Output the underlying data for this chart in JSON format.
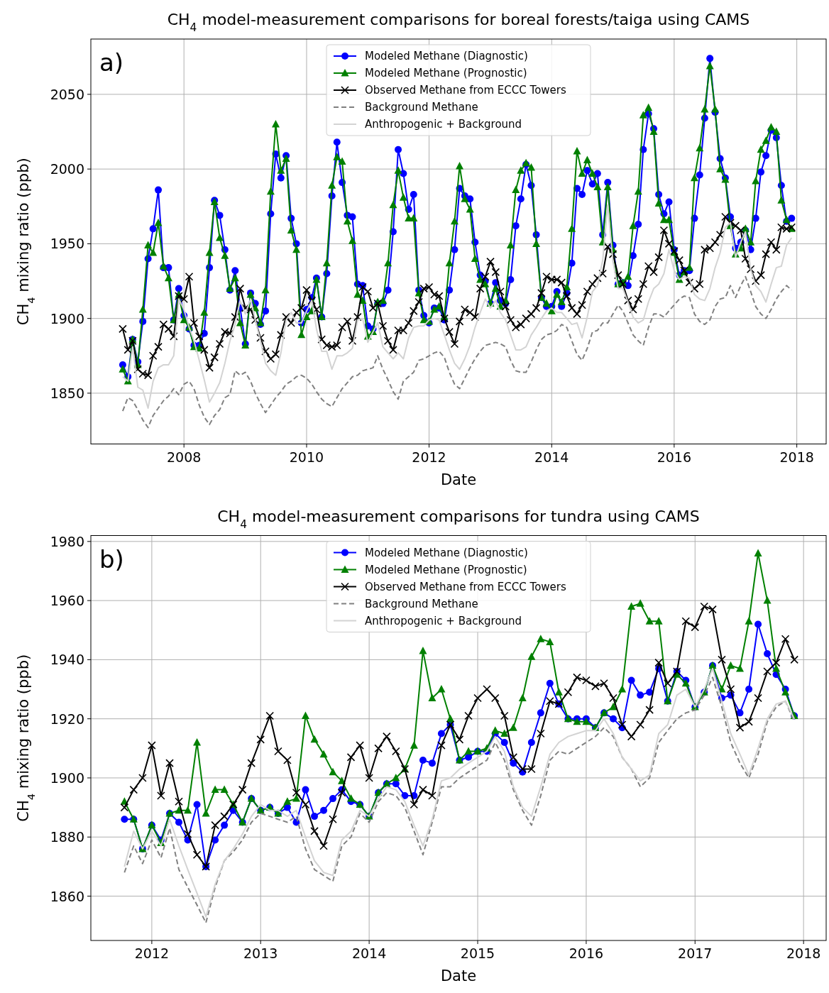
{
  "chart_data": [
    {
      "type": "line",
      "title": "CH$_{4}$ model-measurement comparisons for boreal forests/taiga using CAMS",
      "xlabel": "Date",
      "ylabel": "CH$_{4}$ mixing ratio (ppb)",
      "annotations": [
        "a)"
      ],
      "x": [
        "2007-01",
        "2007-02",
        "2007-03",
        "2007-04",
        "2007-05",
        "2007-06",
        "2007-07",
        "2007-08",
        "2007-09",
        "2007-10",
        "2007-11",
        "2007-12",
        "2008-01",
        "2008-02",
        "2008-03",
        "2008-04",
        "2008-05",
        "2008-06",
        "2008-07",
        "2008-08",
        "2008-09",
        "2008-10",
        "2008-11",
        "2008-12",
        "2009-01",
        "2009-02",
        "2009-03",
        "2009-04",
        "2009-05",
        "2009-06",
        "2009-07",
        "2009-08",
        "2009-09",
        "2009-10",
        "2009-11",
        "2009-12",
        "2010-01",
        "2010-02",
        "2010-03",
        "2010-04",
        "2010-05",
        "2010-06",
        "2010-07",
        "2010-08",
        "2010-09",
        "2010-10",
        "2010-11",
        "2010-12",
        "2011-01",
        "2011-02",
        "2011-03",
        "2011-04",
        "2011-05",
        "2011-06",
        "2011-07",
        "2011-08",
        "2011-09",
        "2011-10",
        "2011-11",
        "2011-12",
        "2012-01",
        "2012-02",
        "2012-03",
        "2012-04",
        "2012-05",
        "2012-06",
        "2012-07",
        "2012-08",
        "2012-09",
        "2012-10",
        "2012-11",
        "2012-12",
        "2013-01",
        "2013-02",
        "2013-03",
        "2013-04",
        "2013-05",
        "2013-06",
        "2013-07",
        "2013-08",
        "2013-09",
        "2013-10",
        "2013-11",
        "2013-12",
        "2014-01",
        "2014-02",
        "2014-03",
        "2014-04",
        "2014-05",
        "2014-06",
        "2014-07",
        "2014-08",
        "2014-09",
        "2014-10",
        "2014-11",
        "2014-12",
        "2015-01",
        "2015-02",
        "2015-03",
        "2015-04",
        "2015-05",
        "2015-06",
        "2015-07",
        "2015-08",
        "2015-09",
        "2015-10",
        "2015-11",
        "2015-12",
        "2016-01",
        "2016-02",
        "2016-03",
        "2016-04",
        "2016-05",
        "2016-06",
        "2016-07",
        "2016-08",
        "2016-09",
        "2016-10",
        "2016-11",
        "2016-12",
        "2017-01",
        "2017-02",
        "2017-03",
        "2017-04",
        "2017-05",
        "2017-06",
        "2017-07",
        "2017-08",
        "2017-09",
        "2017-10",
        "2017-11",
        "2017-12"
      ],
      "series": [
        {
          "name": "Modeled Methane (Diagnostic)",
          "color": "#0000ff",
          "marker": "circle",
          "line_style": "solid",
          "values": [
            1869,
            1861,
            1886,
            1871,
            1898,
            1940,
            1960,
            1986,
            1934,
            1934,
            1899,
            1920,
            1902,
            1893,
            1882,
            1882,
            1890,
            1934,
            1979,
            1969,
            1946,
            1919,
            1932,
            1907,
            1883,
            1917,
            1910,
            1896,
            1905,
            1970,
            2010,
            1994,
            2009,
            1967,
            1950,
            1897,
            1906,
            1914,
            1927,
            1901,
            1930,
            1982,
            2018,
            1991,
            1969,
            1968,
            1923,
            1922,
            1895,
            1893,
            1910,
            1910,
            1919,
            1958,
            2013,
            1997,
            1973,
            1983,
            1919,
            1902,
            1897,
            1907,
            1907,
            1899,
            1919,
            1946,
            1987,
            1982,
            1980,
            1951,
            1929,
            1925,
            1910,
            1924,
            1912,
            1910,
            1926,
            1962,
            1980,
            2003,
            1989,
            1956,
            1914,
            1908,
            1908,
            1918,
            1908,
            1917,
            1937,
            1987,
            1983,
            1999,
            1990,
            1997,
            1956,
            1991,
            1949,
            1923,
            1924,
            1922,
            1942,
            1963,
            2013,
            2037,
            2027,
            1983,
            1970,
            1978,
            1946,
            1929,
            1932,
            1932,
            1967,
            1996,
            2034,
            2074,
            2038,
            2007,
            1994,
            1968,
            1947,
            1951,
            1959,
            1946,
            1967,
            1998,
            2009,
            2026,
            2021,
            1989,
            1965,
            1967
          ]
        },
        {
          "name": "Modeled Methane (Prognostic)",
          "color": "#008000",
          "marker": "triangle",
          "line_style": "solid",
          "values": [
            1866,
            1858,
            1886,
            1869,
            1906,
            1949,
            1944,
            1964,
            1935,
            1927,
            1899,
            1916,
            1899,
            1894,
            1881,
            1880,
            1904,
            1944,
            1978,
            1954,
            1942,
            1920,
            1927,
            1897,
            1882,
            1916,
            1907,
            1897,
            1919,
            1985,
            2030,
            1999,
            2007,
            1959,
            1946,
            1889,
            1901,
            1905,
            1926,
            1901,
            1937,
            1989,
            2008,
            2005,
            1965,
            1952,
            1916,
            1912,
            1888,
            1891,
            1911,
            1912,
            1937,
            1976,
            1999,
            1981,
            1967,
            1967,
            1917,
            1899,
            1898,
            1906,
            1908,
            1901,
            1937,
            1965,
            2002,
            1980,
            1973,
            1940,
            1926,
            1923,
            1910,
            1920,
            1908,
            1912,
            1949,
            1986,
            1999,
            2004,
            2001,
            1950,
            1914,
            1910,
            1905,
            1916,
            1911,
            1921,
            1960,
            2012,
            1997,
            2006,
            1997,
            1988,
            1951,
            1988,
            1946,
            1923,
            1924,
            1928,
            1962,
            1985,
            2036,
            2041,
            2025,
            1977,
            1966,
            1966,
            1944,
            1926,
            1931,
            1934,
            1994,
            2014,
            2040,
            2069,
            2040,
            2000,
            1993,
            1962,
            1943,
            1947,
            1960,
            1951,
            1992,
            2013,
            2019,
            2028,
            2025,
            1979,
            1966,
            1960
          ]
        },
        {
          "name": "Observed Methane from ECCC Towers",
          "color": "#000000",
          "marker": "cross",
          "line_style": "solid",
          "values": [
            1893,
            1879,
            1885,
            1866,
            1863,
            1862,
            1875,
            1881,
            1896,
            1893,
            1888,
            1915,
            1913,
            1928,
            1897,
            1888,
            1879,
            1867,
            1874,
            1883,
            1891,
            1890,
            1901,
            1920,
            1907,
            1906,
            1899,
            1887,
            1878,
            1873,
            1876,
            1889,
            1901,
            1897,
            1904,
            1907,
            1919,
            1912,
            1906,
            1886,
            1882,
            1881,
            1882,
            1894,
            1898,
            1885,
            1901,
            1921,
            1918,
            1907,
            1910,
            1895,
            1885,
            1879,
            1892,
            1892,
            1897,
            1905,
            1911,
            1920,
            1921,
            1916,
            1915,
            1900,
            1891,
            1883,
            1898,
            1906,
            1904,
            1901,
            1920,
            1928,
            1938,
            1931,
            1918,
            1908,
            1899,
            1894,
            1896,
            1900,
            1903,
            1907,
            1917,
            1928,
            1926,
            1926,
            1924,
            1915,
            1907,
            1903,
            1909,
            1918,
            1923,
            1927,
            1930,
            1948,
            1943,
            1929,
            1923,
            1912,
            1906,
            1913,
            1923,
            1935,
            1931,
            1941,
            1959,
            1950,
            1945,
            1939,
            1932,
            1924,
            1920,
            1923,
            1946,
            1947,
            1951,
            1956,
            1968,
            1964,
            1962,
            1959,
            1940,
            1933,
            1925,
            1929,
            1943,
            1951,
            1946,
            1961,
            1960,
            1961
          ]
        },
        {
          "name": "Background Methane",
          "color": "#808080",
          "marker": "none",
          "line_style": "dashed",
          "values": [
            1838,
            1847,
            1845,
            1839,
            1832,
            1827,
            1835,
            1840,
            1845,
            1848,
            1853,
            1849,
            1856,
            1858,
            1853,
            1842,
            1834,
            1829,
            1835,
            1839,
            1847,
            1849,
            1865,
            1862,
            1864,
            1858,
            1850,
            1843,
            1837,
            1842,
            1847,
            1851,
            1856,
            1858,
            1861,
            1862,
            1860,
            1856,
            1851,
            1846,
            1843,
            1841,
            1847,
            1853,
            1857,
            1861,
            1862,
            1865,
            1866,
            1867,
            1875,
            1866,
            1859,
            1851,
            1846,
            1858,
            1861,
            1864,
            1872,
            1873,
            1875,
            1877,
            1878,
            1874,
            1864,
            1856,
            1853,
            1860,
            1867,
            1873,
            1878,
            1882,
            1883,
            1884,
            1883,
            1881,
            1872,
            1865,
            1864,
            1864,
            1871,
            1879,
            1886,
            1889,
            1890,
            1892,
            1896,
            1894,
            1885,
            1876,
            1872,
            1880,
            1891,
            1892,
            1897,
            1897,
            1903,
            1909,
            1905,
            1897,
            1889,
            1885,
            1882,
            1894,
            1903,
            1903,
            1901,
            1905,
            1909,
            1913,
            1915,
            1914,
            1903,
            1898,
            1896,
            1899,
            1908,
            1913,
            1914,
            1922,
            1914,
            1922,
            1928,
            1918,
            1908,
            1903,
            1900,
            1906,
            1913,
            1918,
            1922,
            1919
          ]
        },
        {
          "name": "Anthropogenic + Background",
          "color": "#d3d3d3",
          "marker": "none",
          "line_style": "solid",
          "values": [
            1861,
            1858,
            1881,
            1854,
            1852,
            1840,
            1858,
            1867,
            1869,
            1869,
            1875,
            1913,
            1906,
            1894,
            1885,
            1872,
            1859,
            1844,
            1850,
            1857,
            1870,
            1885,
            1896,
            1912,
            1903,
            1913,
            1899,
            1885,
            1870,
            1865,
            1862,
            1877,
            1899,
            1904,
            1897,
            1897,
            1905,
            1912,
            1893,
            1878,
            1878,
            1866,
            1875,
            1875,
            1877,
            1880,
            1899,
            1900,
            1884,
            1891,
            1897,
            1881,
            1877,
            1873,
            1877,
            1873,
            1887,
            1894,
            1895,
            1895,
            1899,
            1900,
            1899,
            1889,
            1879,
            1870,
            1866,
            1873,
            1882,
            1894,
            1904,
            1913,
            1907,
            1912,
            1904,
            1899,
            1889,
            1879,
            1879,
            1881,
            1889,
            1894,
            1900,
            1905,
            1907,
            1904,
            1904,
            1900,
            1896,
            1897,
            1887,
            1901,
            1918,
            1922,
            1939,
            1976,
            1938,
            1920,
            1920,
            1911,
            1901,
            1897,
            1899,
            1911,
            1920,
            1923,
            1930,
            1946,
            1932,
            1926,
            1928,
            1927,
            1916,
            1913,
            1912,
            1920,
            1934,
            1944,
            1961,
            1964,
            1941,
            1951,
            1958,
            1933,
            1922,
            1918,
            1911,
            1923,
            1934,
            1935,
            1949,
            1954
          ]
        }
      ],
      "xlim": [
        "2006-06-25",
        "2018-06-25"
      ],
      "ylim": [
        1816,
        2087
      ],
      "xticks": [
        {
          "value": "2008-01-01",
          "label": "2008"
        },
        {
          "value": "2010-01-01",
          "label": "2010"
        },
        {
          "value": "2012-01-01",
          "label": "2012"
        },
        {
          "value": "2014-01-01",
          "label": "2014"
        },
        {
          "value": "2016-01-01",
          "label": "2016"
        },
        {
          "value": "2018-01-01",
          "label": "2018"
        }
      ],
      "yticks": [
        1850,
        1900,
        1950,
        2000,
        2050
      ],
      "grid": true,
      "legend": "top"
    },
    {
      "type": "line",
      "title": "CH$_{4}$ model-measurement comparisons for tundra using CAMS",
      "xlabel": "Date",
      "ylabel": "CH$_{4}$ mixing ratio (ppb)",
      "annotations": [
        "b)"
      ],
      "x": [
        "2011-10",
        "2011-11",
        "2011-12",
        "2012-01",
        "2012-02",
        "2012-03",
        "2012-04",
        "2012-05",
        "2012-06",
        "2012-07",
        "2012-08",
        "2012-09",
        "2012-10",
        "2012-11",
        "2012-12",
        "2013-01",
        "2013-02",
        "2013-03",
        "2013-04",
        "2013-05",
        "2013-06",
        "2013-07",
        "2013-08",
        "2013-09",
        "2013-10",
        "2013-11",
        "2013-12",
        "2014-01",
        "2014-02",
        "2014-03",
        "2014-04",
        "2014-05",
        "2014-06",
        "2014-07",
        "2014-08",
        "2014-09",
        "2014-10",
        "2014-11",
        "2014-12",
        "2015-01",
        "2015-02",
        "2015-03",
        "2015-04",
        "2015-05",
        "2015-06",
        "2015-07",
        "2015-08",
        "2015-09",
        "2015-10",
        "2015-11",
        "2015-12",
        "2016-01",
        "2016-02",
        "2016-03",
        "2016-04",
        "2016-05",
        "2016-06",
        "2016-07",
        "2016-08",
        "2016-09",
        "2016-10",
        "2016-11",
        "2016-12",
        "2017-01",
        "2017-02",
        "2017-03",
        "2017-04",
        "2017-05",
        "2017-06",
        "2017-07",
        "2017-08",
        "2017-09",
        "2017-10",
        "2017-11",
        "2017-12"
      ],
      "series": [
        {
          "name": "Modeled Methane (Diagnostic)",
          "color": "#0000ff",
          "marker": "circle",
          "line_style": "solid",
          "values": [
            1886,
            1886,
            1876,
            1884,
            1879,
            1888,
            1885,
            1879,
            1891,
            1870,
            1879,
            1884,
            1889,
            1885,
            1893,
            1889,
            1890,
            1888,
            1890,
            1885,
            1896,
            1887,
            1889,
            1893,
            1896,
            1892,
            1891,
            1887,
            1895,
            1898,
            1898,
            1894,
            1894,
            1906,
            1905,
            1915,
            1918,
            1906,
            1907,
            1909,
            1909,
            1915,
            1912,
            1905,
            1902,
            1912,
            1922,
            1932,
            1925,
            1920,
            1920,
            1920,
            1917,
            1922,
            1920,
            1917,
            1933,
            1928,
            1929,
            1937,
            1926,
            1936,
            1933,
            1924,
            1929,
            1938,
            1927,
            1928,
            1922,
            1930,
            1952,
            1942,
            1935,
            1930,
            1921
          ]
        },
        {
          "name": "Modeled Methane (Prognostic)",
          "color": "#008000",
          "marker": "triangle",
          "line_style": "solid",
          "values": [
            1892,
            1886,
            1876,
            1884,
            1878,
            1888,
            1889,
            1889,
            1912,
            1888,
            1896,
            1896,
            1891,
            1885,
            1893,
            1889,
            1890,
            1888,
            1892,
            1893,
            1921,
            1913,
            1908,
            1902,
            1899,
            1893,
            1891,
            1887,
            1895,
            1898,
            1900,
            1903,
            1911,
            1943,
            1927,
            1930,
            1920,
            1906,
            1909,
            1909,
            1910,
            1916,
            1915,
            1917,
            1927,
            1941,
            1947,
            1946,
            1929,
            1920,
            1919,
            1919,
            1917,
            1922,
            1924,
            1930,
            1958,
            1959,
            1953,
            1953,
            1926,
            1935,
            1932,
            1924,
            1929,
            1938,
            1930,
            1938,
            1937,
            1953,
            1976,
            1960,
            1937,
            1929,
            1921
          ]
        },
        {
          "name": "Observed Methane from ECCC Towers",
          "color": "#000000",
          "marker": "cross",
          "line_style": "solid",
          "values": [
            1890,
            1896,
            1900,
            1911,
            1894,
            1905,
            1892,
            1881,
            1874,
            1870,
            1884,
            1887,
            1891,
            1896,
            1905,
            1913,
            1921,
            1909,
            1906,
            1895,
            1891,
            1882,
            1877,
            1886,
            1895,
            1907,
            1911,
            1900,
            1910,
            1914,
            1909,
            1903,
            1891,
            1896,
            1894,
            1911,
            1918,
            1913,
            1921,
            1927,
            1930,
            1927,
            1921,
            1907,
            1903,
            1903,
            1915,
            1926,
            1925,
            1929,
            1934,
            1933,
            1931,
            1932,
            1927,
            1918,
            1914,
            1918,
            1923,
            1939,
            1932,
            1936,
            1953,
            1951,
            1958,
            1957,
            1940,
            1930,
            1917,
            1919,
            1927,
            1936,
            1939,
            1947,
            1940
          ]
        },
        {
          "name": "Background Methane",
          "color": "#808080",
          "marker": "none",
          "line_style": "dashed",
          "values": [
            1868,
            1877,
            1871,
            1879,
            1873,
            1883,
            1869,
            1863,
            1857,
            1851,
            1863,
            1872,
            1875,
            1879,
            1885,
            1888,
            1887,
            1886,
            1885,
            1887,
            1876,
            1869,
            1867,
            1865,
            1877,
            1880,
            1888,
            1885,
            1892,
            1895,
            1894,
            1890,
            1882,
            1874,
            1885,
            1897,
            1897,
            1900,
            1902,
            1904,
            1906,
            1912,
            1906,
            1896,
            1889,
            1884,
            1894,
            1906,
            1909,
            1908,
            1910,
            1912,
            1914,
            1917,
            1914,
            1907,
            1903,
            1897,
            1900,
            1912,
            1916,
            1920,
            1922,
            1923,
            1928,
            1934,
            1924,
            1912,
            1905,
            1900,
            1908,
            1919,
            1924,
            1926,
            1919
          ]
        },
        {
          "name": "Anthropogenic + Background",
          "color": "#d3d3d3",
          "marker": "none",
          "line_style": "solid",
          "values": [
            1870,
            1882,
            1876,
            1882,
            1877,
            1886,
            1877,
            1869,
            1861,
            1853,
            1864,
            1872,
            1876,
            1881,
            1887,
            1891,
            1889,
            1889,
            1887,
            1889,
            1880,
            1872,
            1868,
            1867,
            1879,
            1882,
            1889,
            1887,
            1893,
            1897,
            1896,
            1892,
            1884,
            1877,
            1886,
            1899,
            1900,
            1903,
            1905,
            1907,
            1909,
            1914,
            1909,
            1897,
            1890,
            1887,
            1897,
            1908,
            1912,
            1914,
            1915,
            1916,
            1916,
            1920,
            1915,
            1907,
            1903,
            1899,
            1901,
            1915,
            1918,
            1928,
            1930,
            1924,
            1930,
            1937,
            1926,
            1915,
            1908,
            1901,
            1910,
            1920,
            1925,
            1926,
            1920
          ]
        }
      ],
      "xlim": [
        "2011-06-10",
        "2018-03-18"
      ],
      "ylim": [
        1845,
        1982
      ],
      "xticks": [
        {
          "value": "2012-01-01",
          "label": "2012"
        },
        {
          "value": "2013-01-01",
          "label": "2013"
        },
        {
          "value": "2014-01-01",
          "label": "2014"
        },
        {
          "value": "2015-01-01",
          "label": "2015"
        },
        {
          "value": "2016-01-01",
          "label": "2016"
        },
        {
          "value": "2017-01-01",
          "label": "2017"
        },
        {
          "value": "2018-01-01",
          "label": "2018"
        }
      ],
      "yticks": [
        1860,
        1880,
        1900,
        1920,
        1940,
        1960,
        1980
      ],
      "grid": true,
      "legend": "top"
    }
  ]
}
